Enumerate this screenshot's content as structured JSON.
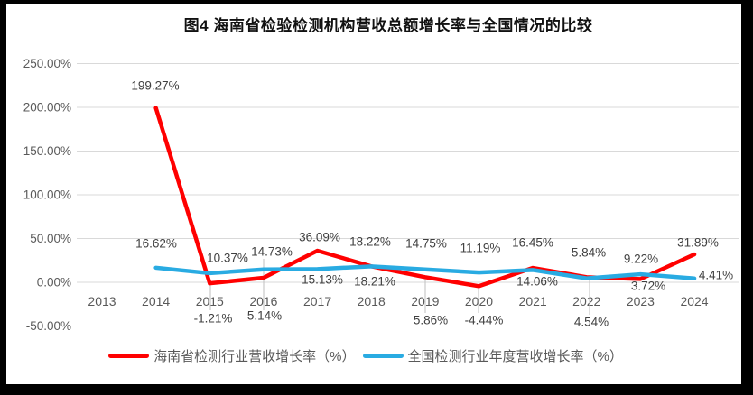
{
  "title": "图4 海南省检验检测机构营收总额增长率与全国情况的比较",
  "chart_data": {
    "type": "line",
    "x": [
      2013,
      2014,
      2015,
      2016,
      2017,
      2018,
      2019,
      2020,
      2021,
      2022,
      2023,
      2024
    ],
    "series": [
      {
        "name": "海南省检测行业营收增长率（%）",
        "color": "#FF0000",
        "values": [
          null,
          199.27,
          -1.21,
          5.14,
          36.09,
          18.22,
          5.86,
          -4.44,
          16.45,
          5.84,
          3.72,
          31.89
        ],
        "labels": [
          null,
          "199.27%",
          "-1.21%",
          "5.14%",
          "36.09%",
          "18.22%",
          "5.86%",
          "-4.44%",
          "16.45%",
          "5.84%",
          "3.72%",
          "31.89%"
        ]
      },
      {
        "name": "全国检测行业年度营收增长率（%）",
        "color": "#29ABE2",
        "values": [
          null,
          16.62,
          10.37,
          14.73,
          15.13,
          18.21,
          14.75,
          11.19,
          14.06,
          4.54,
          9.22,
          4.41
        ],
        "labels": [
          null,
          "16.62%",
          "10.37%",
          "14.73%",
          "15.13%",
          "18.21%",
          "14.75%",
          "11.19%",
          "14.06%",
          "4.54%",
          "9.22%",
          "4.41%"
        ]
      }
    ],
    "yticks": [
      "250.00%",
      "200.00%",
      "150.00%",
      "100.00%",
      "50.00%",
      "0.00%",
      "-50.00%"
    ],
    "ylim": [
      -50,
      250
    ],
    "xlabel": "",
    "ylabel": "",
    "grid": true,
    "legend_position": "bottom"
  },
  "colors": {
    "gridline": "#D9D9D9",
    "axis_text": "#595959",
    "data_label": "#404040",
    "leader_line": "#BFBFBF",
    "frame": "#000000",
    "background": "#FFFFFF"
  }
}
